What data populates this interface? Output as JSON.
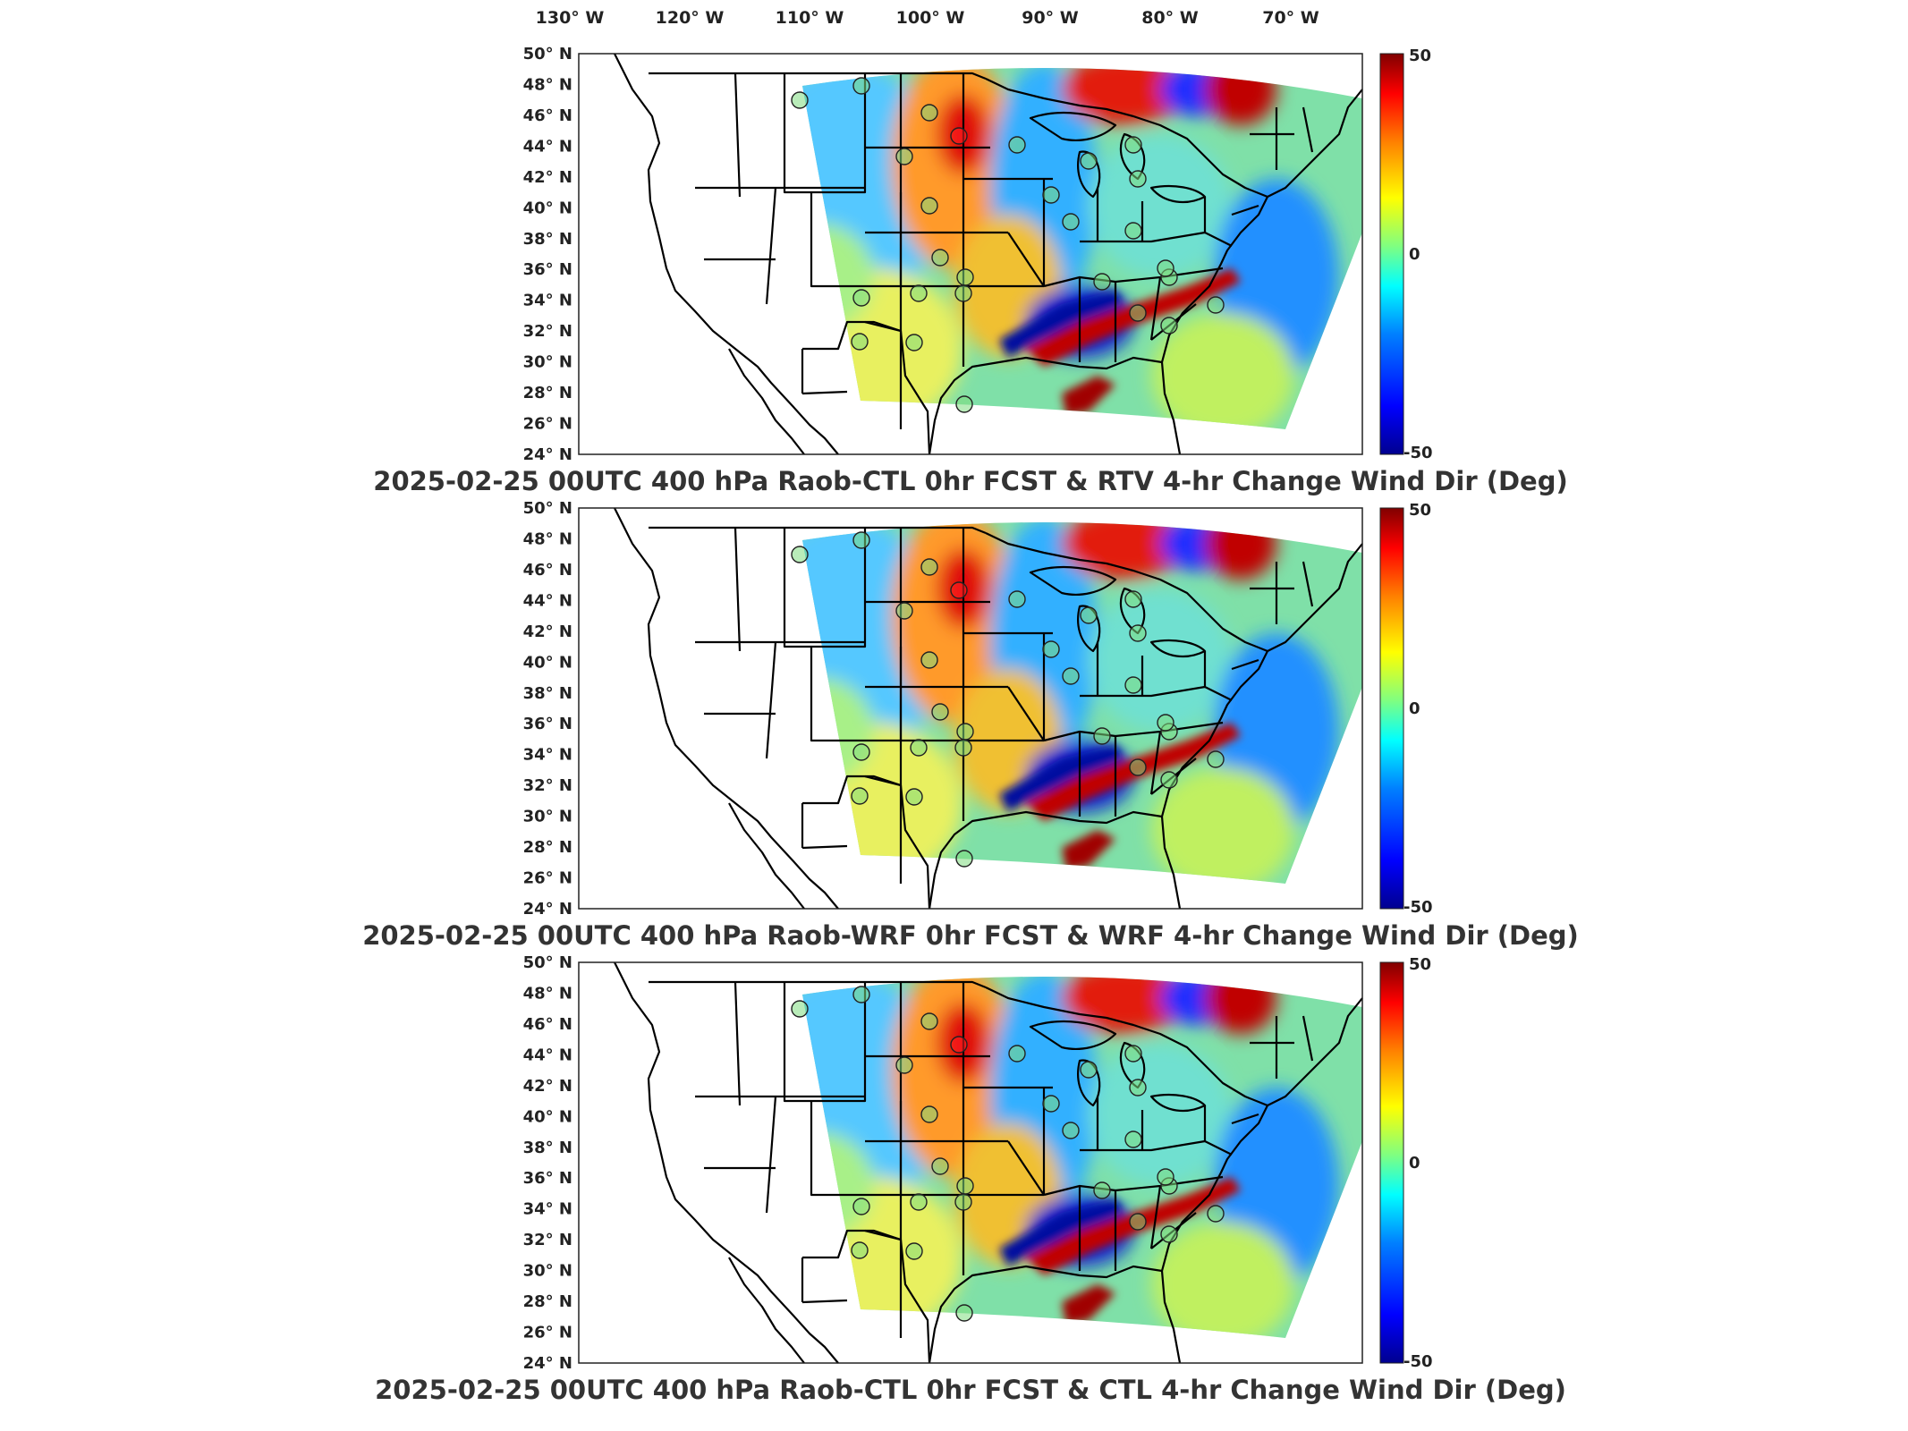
{
  "top_longitude_labels": [
    "130° W",
    "120° W",
    "110° W",
    "100° W",
    "90° W",
    "80° W",
    "70° W"
  ],
  "latitude_labels": [
    "50° N",
    "48° N",
    "46° N",
    "44° N",
    "42° N",
    "40° N",
    "38° N",
    "36° N",
    "34° N",
    "32° N",
    "30° N",
    "28° N",
    "26° N",
    "24° N"
  ],
  "colorbar": {
    "max_label": "50",
    "mid_label": "0",
    "min_label": "-50",
    "colormap": [
      "#00008f",
      "#0000ff",
      "#0080ff",
      "#00ffff",
      "#80ff80",
      "#ffff00",
      "#ff8000",
      "#ff0000",
      "#800000"
    ]
  },
  "panels": [
    {
      "title": "2025-02-25 00UTC 400 hPa Raob-CTL 0hr FCST & RTV 4-hr Change Wind Dir (Deg)"
    },
    {
      "title": "2025-02-25 00UTC 400 hPa Raob-WRF 0hr FCST & WRF 4-hr Change Wind Dir (Deg)"
    },
    {
      "title": "2025-02-25 00UTC 400 hPa Raob-CTL 0hr FCST & CTL 4-hr Change Wind Dir (Deg)"
    }
  ],
  "map_colors": {
    "background": "#ffffff",
    "land_outline": "#000000",
    "raob_marker_fill": "#7fdc7f"
  }
}
